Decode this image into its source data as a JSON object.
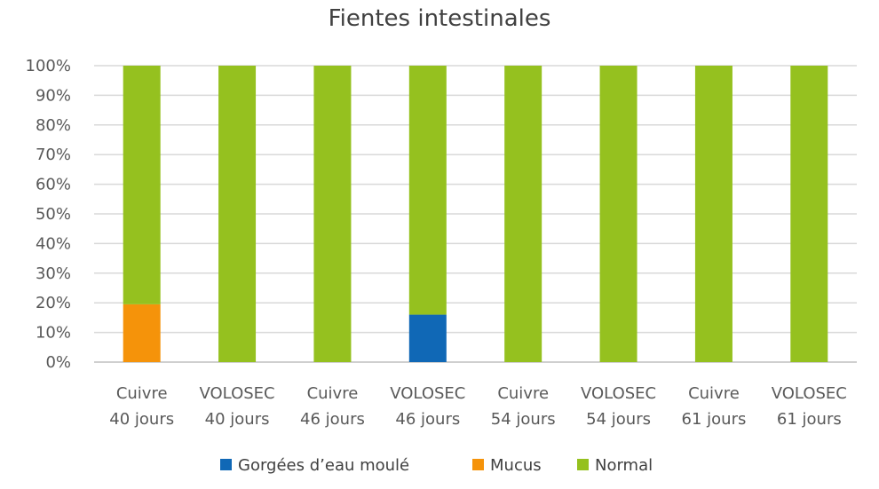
{
  "chart_data": {
    "type": "bar",
    "stacked": true,
    "title": "Fientes intestinales",
    "categories": [
      [
        "Cuivre",
        "40 jours"
      ],
      [
        "VOLOSEC",
        "40 jours"
      ],
      [
        "Cuivre",
        "46 jours"
      ],
      [
        "VOLOSEC",
        "46 jours"
      ],
      [
        "Cuivre",
        "54 jours"
      ],
      [
        "VOLOSEC",
        "54 jours"
      ],
      [
        "Cuivre",
        "61 jours"
      ],
      [
        "VOLOSEC",
        "61 jours"
      ]
    ],
    "series": [
      {
        "name": "Gorgées d’eau moulé",
        "color": "#1068b6",
        "values": [
          0,
          0,
          0,
          16,
          0,
          0,
          0,
          0
        ]
      },
      {
        "name": "Mucus",
        "color": "#f5930a",
        "values": [
          19.5,
          0,
          0,
          0,
          0,
          0,
          0,
          0
        ]
      },
      {
        "name": "Normal",
        "color": "#95c11f",
        "values": [
          80.5,
          100,
          100,
          84,
          100,
          100,
          100,
          100
        ]
      }
    ],
    "yticks": [
      "0%",
      "10%",
      "20%",
      "30%",
      "40%",
      "50%",
      "60%",
      "70%",
      "80%",
      "90%",
      "100%"
    ],
    "ylim": [
      0,
      100
    ],
    "xlabel": "",
    "ylabel": "",
    "grid": true,
    "legend_position": "bottom"
  }
}
